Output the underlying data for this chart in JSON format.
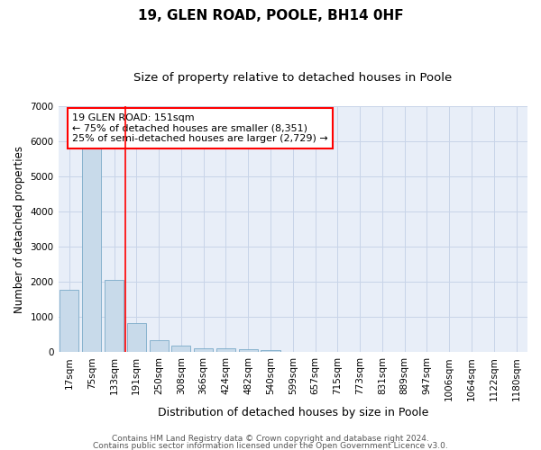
{
  "title1": "19, GLEN ROAD, POOLE, BH14 0HF",
  "title2": "Size of property relative to detached houses in Poole",
  "xlabel": "Distribution of detached houses by size in Poole",
  "ylabel": "Number of detached properties",
  "categories": [
    "17sqm",
    "75sqm",
    "133sqm",
    "191sqm",
    "250sqm",
    "308sqm",
    "366sqm",
    "424sqm",
    "482sqm",
    "540sqm",
    "599sqm",
    "657sqm",
    "715sqm",
    "773sqm",
    "831sqm",
    "889sqm",
    "947sqm",
    "1006sqm",
    "1064sqm",
    "1122sqm",
    "1180sqm"
  ],
  "values": [
    1780,
    5800,
    2060,
    820,
    340,
    190,
    120,
    110,
    90,
    70,
    0,
    0,
    0,
    0,
    0,
    0,
    0,
    0,
    0,
    0,
    0
  ],
  "bar_color": "#c8daea",
  "bar_edge_color": "#7aaac8",
  "red_line_x": 2,
  "annotation_text": "19 GLEN ROAD: 151sqm\n← 75% of detached houses are smaller (8,351)\n25% of semi-detached houses are larger (2,729) →",
  "annotation_box_color": "white",
  "annotation_box_edge": "red",
  "ylim": [
    0,
    7000
  ],
  "yticks": [
    0,
    1000,
    2000,
    3000,
    4000,
    5000,
    6000,
    7000
  ],
  "grid_color": "#c8d4e8",
  "background_color": "#e8eef8",
  "footer1": "Contains HM Land Registry data © Crown copyright and database right 2024.",
  "footer2": "Contains public sector information licensed under the Open Government Licence v3.0.",
  "title1_fontsize": 11,
  "title2_fontsize": 9.5,
  "xlabel_fontsize": 9,
  "ylabel_fontsize": 8.5,
  "tick_fontsize": 7.5,
  "annotation_fontsize": 8,
  "footer_fontsize": 6.5
}
